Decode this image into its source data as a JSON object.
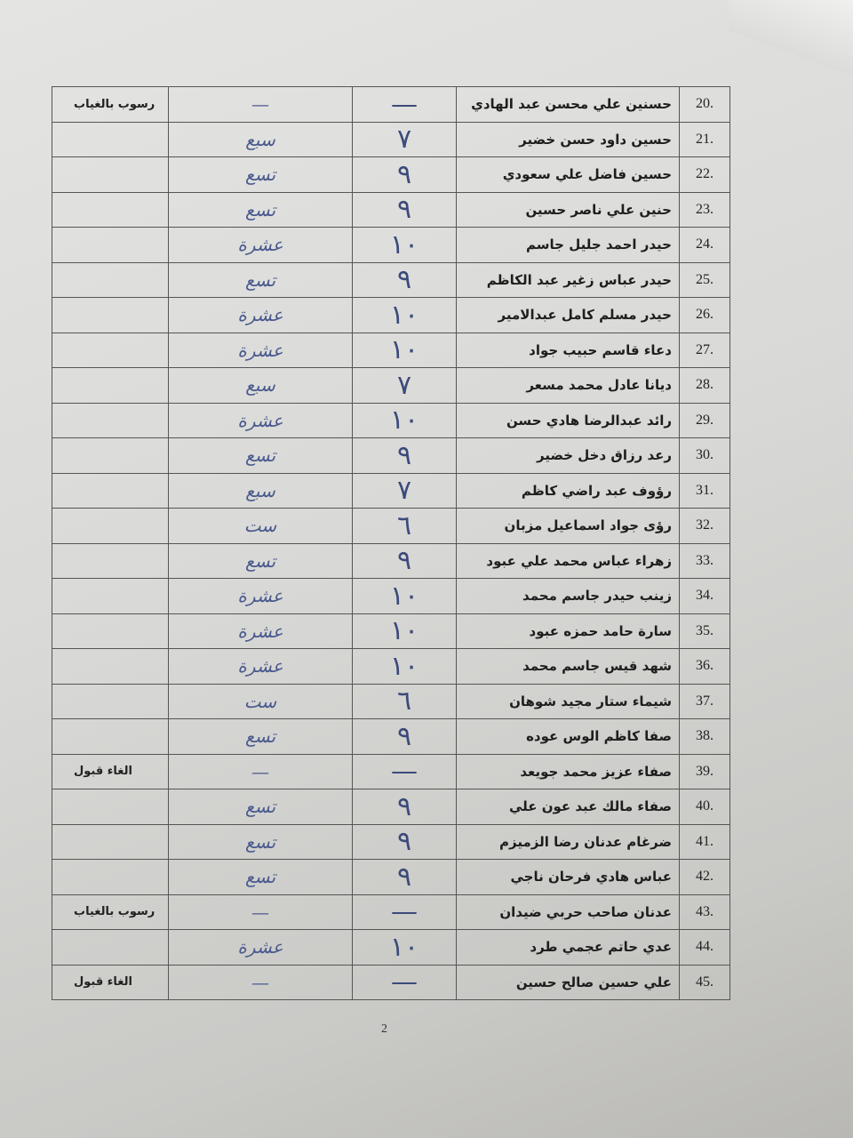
{
  "rows": [
    {
      "no": "20.",
      "name": "حسنين علي محسن عبد الهادي",
      "digit": "—",
      "word": "—",
      "note": "رسوب بالغياب"
    },
    {
      "no": "21.",
      "name": "حسين داود حسن خضير",
      "digit": "٧",
      "word": "سبع",
      "note": ""
    },
    {
      "no": "22.",
      "name": "حسين فاضل علي سعودي",
      "digit": "٩",
      "word": "تسع",
      "note": ""
    },
    {
      "no": "23.",
      "name": "حنين علي ناصر حسين",
      "digit": "٩",
      "word": "تسع",
      "note": ""
    },
    {
      "no": "24.",
      "name": "حيدر احمد جليل جاسم",
      "digit": "١٠",
      "word": "عشرة",
      "note": ""
    },
    {
      "no": "25.",
      "name": "حيدر عباس زغير عبد الكاظم",
      "digit": "٩",
      "word": "تسع",
      "note": ""
    },
    {
      "no": "26.",
      "name": "حيدر مسلم كامل عبدالامير",
      "digit": "١٠",
      "word": "عشرة",
      "note": ""
    },
    {
      "no": "27.",
      "name": "دعاء قاسم حبيب جواد",
      "digit": "١٠",
      "word": "عشرة",
      "note": ""
    },
    {
      "no": "28.",
      "name": "ديانا عادل محمد مسعر",
      "digit": "٧",
      "word": "سبع",
      "note": ""
    },
    {
      "no": "29.",
      "name": "رائد عبدالرضا هادي حسن",
      "digit": "١٠",
      "word": "عشرة",
      "note": ""
    },
    {
      "no": "30.",
      "name": "رعد رزاق دخل خضير",
      "digit": "٩",
      "word": "تسع",
      "note": ""
    },
    {
      "no": "31.",
      "name": "رؤوف عبد راضي كاظم",
      "digit": "٧",
      "word": "سبع",
      "note": ""
    },
    {
      "no": "32.",
      "name": "رؤى جواد اسماعيل مزبان",
      "digit": "٦",
      "word": "ست",
      "note": ""
    },
    {
      "no": "33.",
      "name": "زهراء عباس محمد علي عبود",
      "digit": "٩",
      "word": "تسع",
      "note": ""
    },
    {
      "no": "34.",
      "name": "زينب حيدر جاسم محمد",
      "digit": "١٠",
      "word": "عشرة",
      "note": ""
    },
    {
      "no": "35.",
      "name": "سارة حامد حمزه عبود",
      "digit": "١٠",
      "word": "عشرة",
      "note": ""
    },
    {
      "no": "36.",
      "name": "شهد قيس جاسم محمد",
      "digit": "١٠",
      "word": "عشرة",
      "note": ""
    },
    {
      "no": "37.",
      "name": "شيماء ستار مجيد شوهان",
      "digit": "٦",
      "word": "ست",
      "note": ""
    },
    {
      "no": "38.",
      "name": "صفا كاظم الوس عوده",
      "digit": "٩",
      "word": "تسع",
      "note": ""
    },
    {
      "no": "39.",
      "name": "صفاء عزيز محمد جويعد",
      "digit": "—",
      "word": "—",
      "note": "الغاء قبول"
    },
    {
      "no": "40.",
      "name": "صفاء مالك عبد عون علي",
      "digit": "٩",
      "word": "تسع",
      "note": ""
    },
    {
      "no": "41.",
      "name": "ضرغام عدنان رضا الزميزم",
      "digit": "٩",
      "word": "تسع",
      "note": ""
    },
    {
      "no": "42.",
      "name": "عباس هادي فرحان ناجي",
      "digit": "٩",
      "word": "تسع",
      "note": ""
    },
    {
      "no": "43.",
      "name": "عدنان صاحب حربي ضيدان",
      "digit": "—",
      "word": "—",
      "note": "رسوب بالغياب"
    },
    {
      "no": "44.",
      "name": "عدي حاتم عجمي طرد",
      "digit": "١٠",
      "word": "عشرة",
      "note": ""
    },
    {
      "no": "45.",
      "name": "علي حسين صالح حسين",
      "digit": "—",
      "word": "—",
      "note": "الغاء قبول"
    }
  ],
  "page_number": "2"
}
